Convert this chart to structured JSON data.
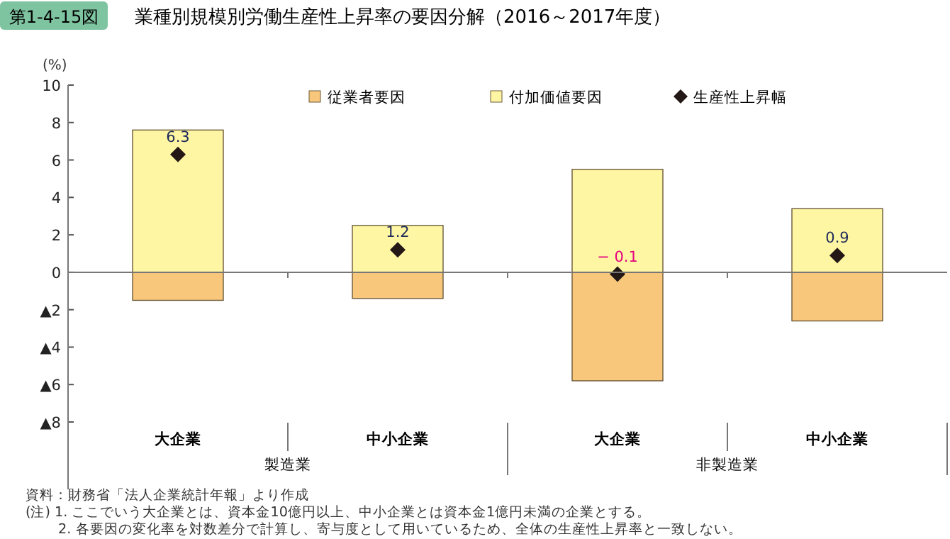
{
  "chart_data": {
    "type": "bar",
    "title": "業種別規模別労働生産性上昇率の要因分解（2016～2017年度）",
    "ylabel": "(%)",
    "categories": [
      "大企業",
      "中小企業",
      "大企業",
      "中小企業"
    ],
    "stacked": true,
    "series": [
      {
        "name": "従業者要因",
        "color": "#f9c77c",
        "values": [
          -1.5,
          -1.4,
          -5.8,
          -2.6
        ]
      },
      {
        "name": "付加価値要因",
        "color": "#fff6a3",
        "values": [
          7.6,
          2.5,
          5.5,
          3.4
        ]
      },
      {
        "name": "生産性上昇幅",
        "type": "scatter",
        "marker": "diamond",
        "color": "#231815",
        "values": [
          6.3,
          1.2,
          -0.1,
          0.9
        ],
        "value_labels": [
          "6.3",
          "1.2",
          "− 0.1",
          "0.9"
        ]
      }
    ],
    "ylim": [
      -11.6,
      10
    ],
    "yticks": [
      10,
      8,
      6,
      4,
      2,
      0,
      {
        "value": -2,
        "label": "▲2"
      },
      {
        "value": -4,
        "label": "▲4"
      },
      {
        "value": -6,
        "label": "▲6"
      },
      {
        "value": -8,
        "label": "▲8"
      }
    ],
    "legend": "top",
    "annotations": [
      "第1-4-15図",
      "製造業",
      "非製造業",
      "資料：財務省「法人企業統計年報」より作成",
      "(注) 1. ここでいう大企業とは、資本金10億円以上、中小企業とは資本金1億円未満の企業とする。",
      "　　 2. 各要因の変化率を対数差分で計算し、寄与度として用いているため、全体の生産性上昇率と一致しない。"
    ]
  }
}
